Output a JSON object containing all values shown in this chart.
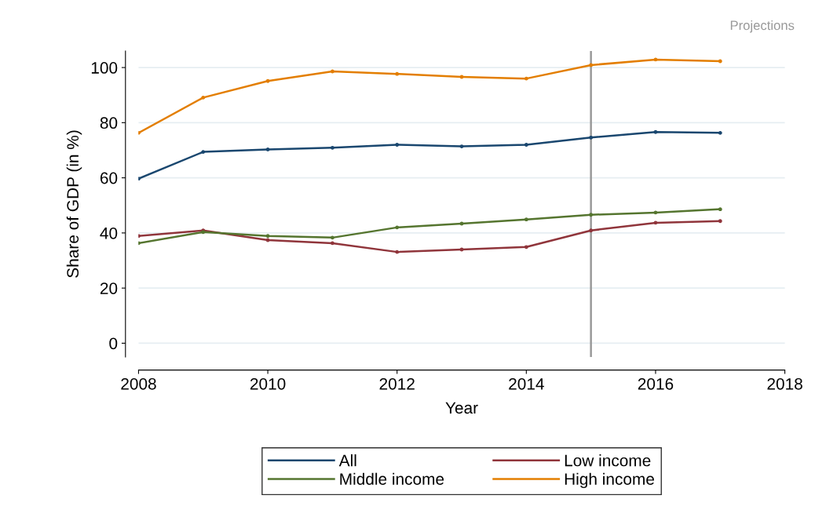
{
  "chart_data": {
    "type": "line",
    "xlabel": "Year",
    "ylabel": "Share of GDP (in %)",
    "x": [
      2008,
      2009,
      2010,
      2011,
      2012,
      2013,
      2014,
      2015,
      2016,
      2017
    ],
    "series": [
      {
        "name": "All",
        "color": "#1a476f",
        "values": [
          59.7,
          69.4,
          70.3,
          70.9,
          72.0,
          71.4,
          72.0,
          74.6,
          76.6,
          76.3
        ]
      },
      {
        "name": "Low income",
        "color": "#90353b",
        "values": [
          38.9,
          40.9,
          37.4,
          36.3,
          33.1,
          34.0,
          34.9,
          40.9,
          43.7,
          44.3
        ]
      },
      {
        "name": "Middle income",
        "color": "#55752f",
        "values": [
          36.3,
          40.3,
          38.9,
          38.3,
          42.0,
          43.4,
          44.9,
          46.6,
          47.4,
          48.6
        ]
      },
      {
        "name": "High income",
        "color": "#e37e00",
        "values": [
          76.3,
          89.1,
          95.1,
          98.6,
          97.7,
          96.6,
          96.0,
          100.9,
          102.9,
          102.3
        ]
      }
    ],
    "xlim": [
      2008,
      2018
    ],
    "xticks": [
      2008,
      2010,
      2012,
      2014,
      2016,
      2018
    ],
    "ylim": [
      -5,
      106
    ],
    "yticks": [
      0,
      20,
      40,
      60,
      80,
      100
    ],
    "ref_lines": [
      {
        "axis": "x",
        "value": 2015,
        "color": "#999999"
      }
    ],
    "annotations": [
      "Projections"
    ],
    "grid": "y",
    "legend": "bottom",
    "marker": "circle",
    "line_style": "solid"
  }
}
